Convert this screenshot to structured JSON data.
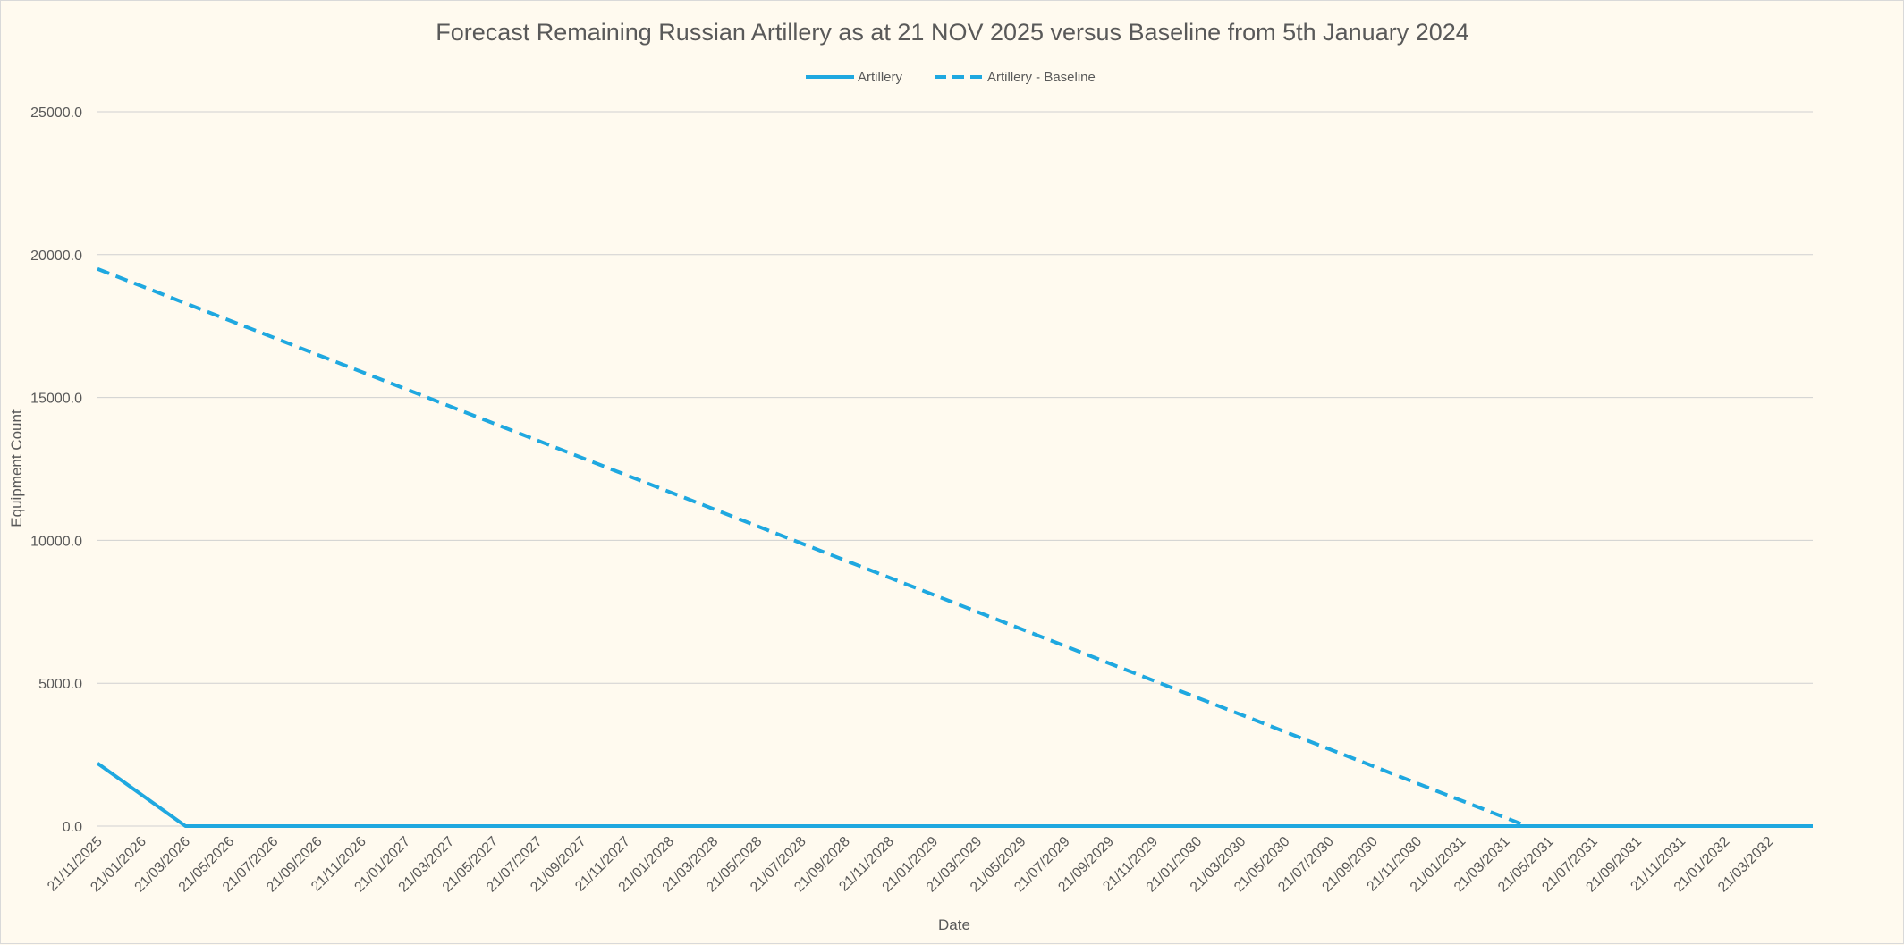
{
  "chart_data": {
    "type": "line",
    "title": "Forecast Remaining Russian Artillery as at 21 NOV 2025 versus Baseline from 5th January 2024",
    "xlabel": "Date",
    "ylabel": "Equipment Count",
    "ylim": [
      0,
      25000
    ],
    "yticks": [
      "0.0",
      "5000.0",
      "10000.0",
      "15000.0",
      "20000.0",
      "25000.0"
    ],
    "grid": true,
    "legend_position": "top",
    "categories": [
      "21/11/2025",
      "21/01/2026",
      "21/03/2026",
      "21/05/2026",
      "21/07/2026",
      "21/09/2026",
      "21/11/2026",
      "21/01/2027",
      "21/03/2027",
      "21/05/2027",
      "21/07/2027",
      "21/09/2027",
      "21/11/2027",
      "21/01/2028",
      "21/03/2028",
      "21/05/2028",
      "21/07/2028",
      "21/09/2028",
      "21/11/2028",
      "21/01/2029",
      "21/03/2029",
      "21/05/2029",
      "21/07/2029",
      "21/09/2029",
      "21/11/2029",
      "21/01/2030",
      "21/03/2030",
      "21/05/2030",
      "21/07/2030",
      "21/09/2030",
      "21/11/2030",
      "21/01/2031",
      "21/03/2031",
      "21/05/2031",
      "21/07/2031",
      "21/09/2031",
      "21/11/2031",
      "21/01/2032",
      "21/03/2032"
    ],
    "series": [
      {
        "name": "Artillery",
        "style": "solid",
        "color": "#1fa8e0",
        "x": [
          "21/11/2025",
          "21/03/2026",
          "21/05/2032"
        ],
        "values": [
          2200,
          0,
          0
        ]
      },
      {
        "name": "Artillery - Baseline",
        "style": "dashed",
        "color": "#1fa8e0",
        "x": [
          "21/11/2025",
          "21/04/2031",
          "21/05/2032"
        ],
        "values": [
          19500,
          0,
          0
        ]
      }
    ]
  }
}
